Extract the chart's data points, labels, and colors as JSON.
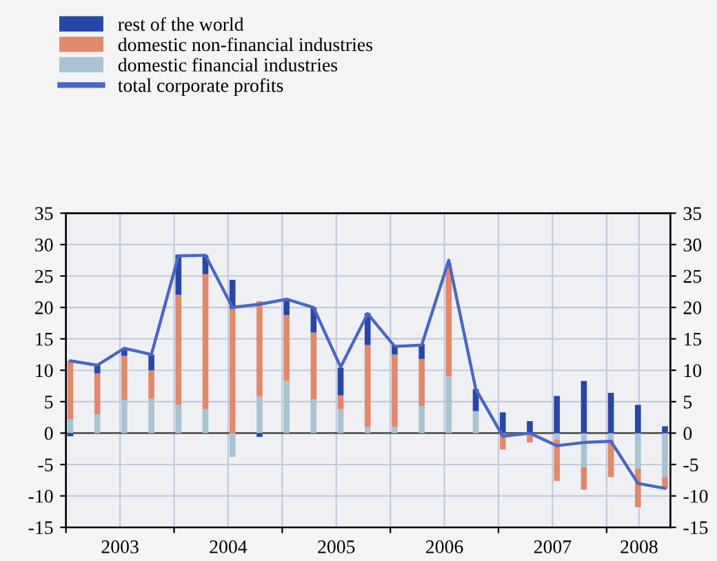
{
  "chart_data": {
    "type": "bar",
    "stacked": true,
    "x": [
      2003.04,
      2003.29,
      2003.54,
      2003.79,
      2004.04,
      2004.29,
      2004.54,
      2004.79,
      2005.04,
      2005.29,
      2005.54,
      2005.79,
      2006.04,
      2006.29,
      2006.54,
      2006.79,
      2007.04,
      2007.29,
      2007.54,
      2007.79,
      2008.04,
      2008.29,
      2008.54
    ],
    "series": [
      {
        "name": "domestic financial industries",
        "color": "#a9c3d3",
        "values": [
          2.2,
          3.0,
          5.3,
          5.5,
          4.5,
          3.8,
          -3.8,
          5.8,
          8.3,
          5.4,
          3.8,
          1.0,
          1.0,
          4.3,
          9.0,
          3.5,
          null,
          null,
          -1.0,
          -5.4,
          -1.0,
          -5.7,
          -7.0
        ]
      },
      {
        "name": "domestic non-financial industries",
        "color": "#e0896b",
        "values": [
          9.3,
          6.5,
          7.0,
          4.5,
          17.5,
          21.5,
          19.8,
          15.2,
          10.5,
          10.6,
          2.2,
          13.0,
          11.5,
          7.5,
          18.0,
          0,
          -2.6,
          -1.5,
          -6.6,
          -3.6,
          -6.0,
          -6.1,
          -1.9
        ]
      },
      {
        "name": "rest of the world",
        "color": "#2747a6",
        "values": [
          -0.5,
          1.3,
          1.2,
          2.5,
          6.4,
          3.0,
          4.6,
          -0.6,
          2.4,
          4.0,
          4.4,
          5.1,
          1.5,
          2.4,
          null,
          3.5,
          3.3,
          1.9,
          5.9,
          8.3,
          6.4,
          4.5,
          1.1
        ]
      },
      {
        "name": "total corporate profits",
        "type": "line",
        "color": "#4a66c6",
        "values": [
          11.5,
          10.8,
          13.5,
          12.5,
          28.2,
          28.3,
          20.0,
          20.5,
          21.3,
          20.0,
          10.5,
          19.0,
          13.8,
          14.0,
          27.5,
          7.0,
          -0.5,
          0.0,
          -2.0,
          -1.5,
          -1.3,
          -8.0,
          -8.8
        ]
      }
    ],
    "xlim": [
      2003,
      2008.59
    ],
    "xticks": [
      {
        "value": 2003,
        "label": null
      },
      {
        "value": 2003.5,
        "label": "2003"
      },
      {
        "value": 2004,
        "label": null
      },
      {
        "value": 2004.5,
        "label": "2004"
      },
      {
        "value": 2005,
        "label": null
      },
      {
        "value": 2005.5,
        "label": "2005"
      },
      {
        "value": 2006,
        "label": null
      },
      {
        "value": 2006.5,
        "label": "2006"
      },
      {
        "value": 2007,
        "label": null
      },
      {
        "value": 2007.5,
        "label": "2007"
      },
      {
        "value": 2008,
        "label": null
      },
      {
        "value": 2008.3,
        "label": "2008"
      }
    ],
    "ylim": [
      -15,
      35
    ],
    "yticks": [
      -15,
      -10,
      -5,
      0,
      5,
      10,
      15,
      20,
      25,
      30,
      35
    ],
    "y2lim": [
      -15,
      35
    ],
    "y2ticks": [
      -15,
      -10,
      -5,
      0,
      5,
      10,
      15,
      20,
      25,
      30,
      35
    ],
    "ref_lines": [
      {
        "axis": "y",
        "value": 0,
        "color": "#555555"
      }
    ],
    "grid": true,
    "legend": "top left"
  }
}
